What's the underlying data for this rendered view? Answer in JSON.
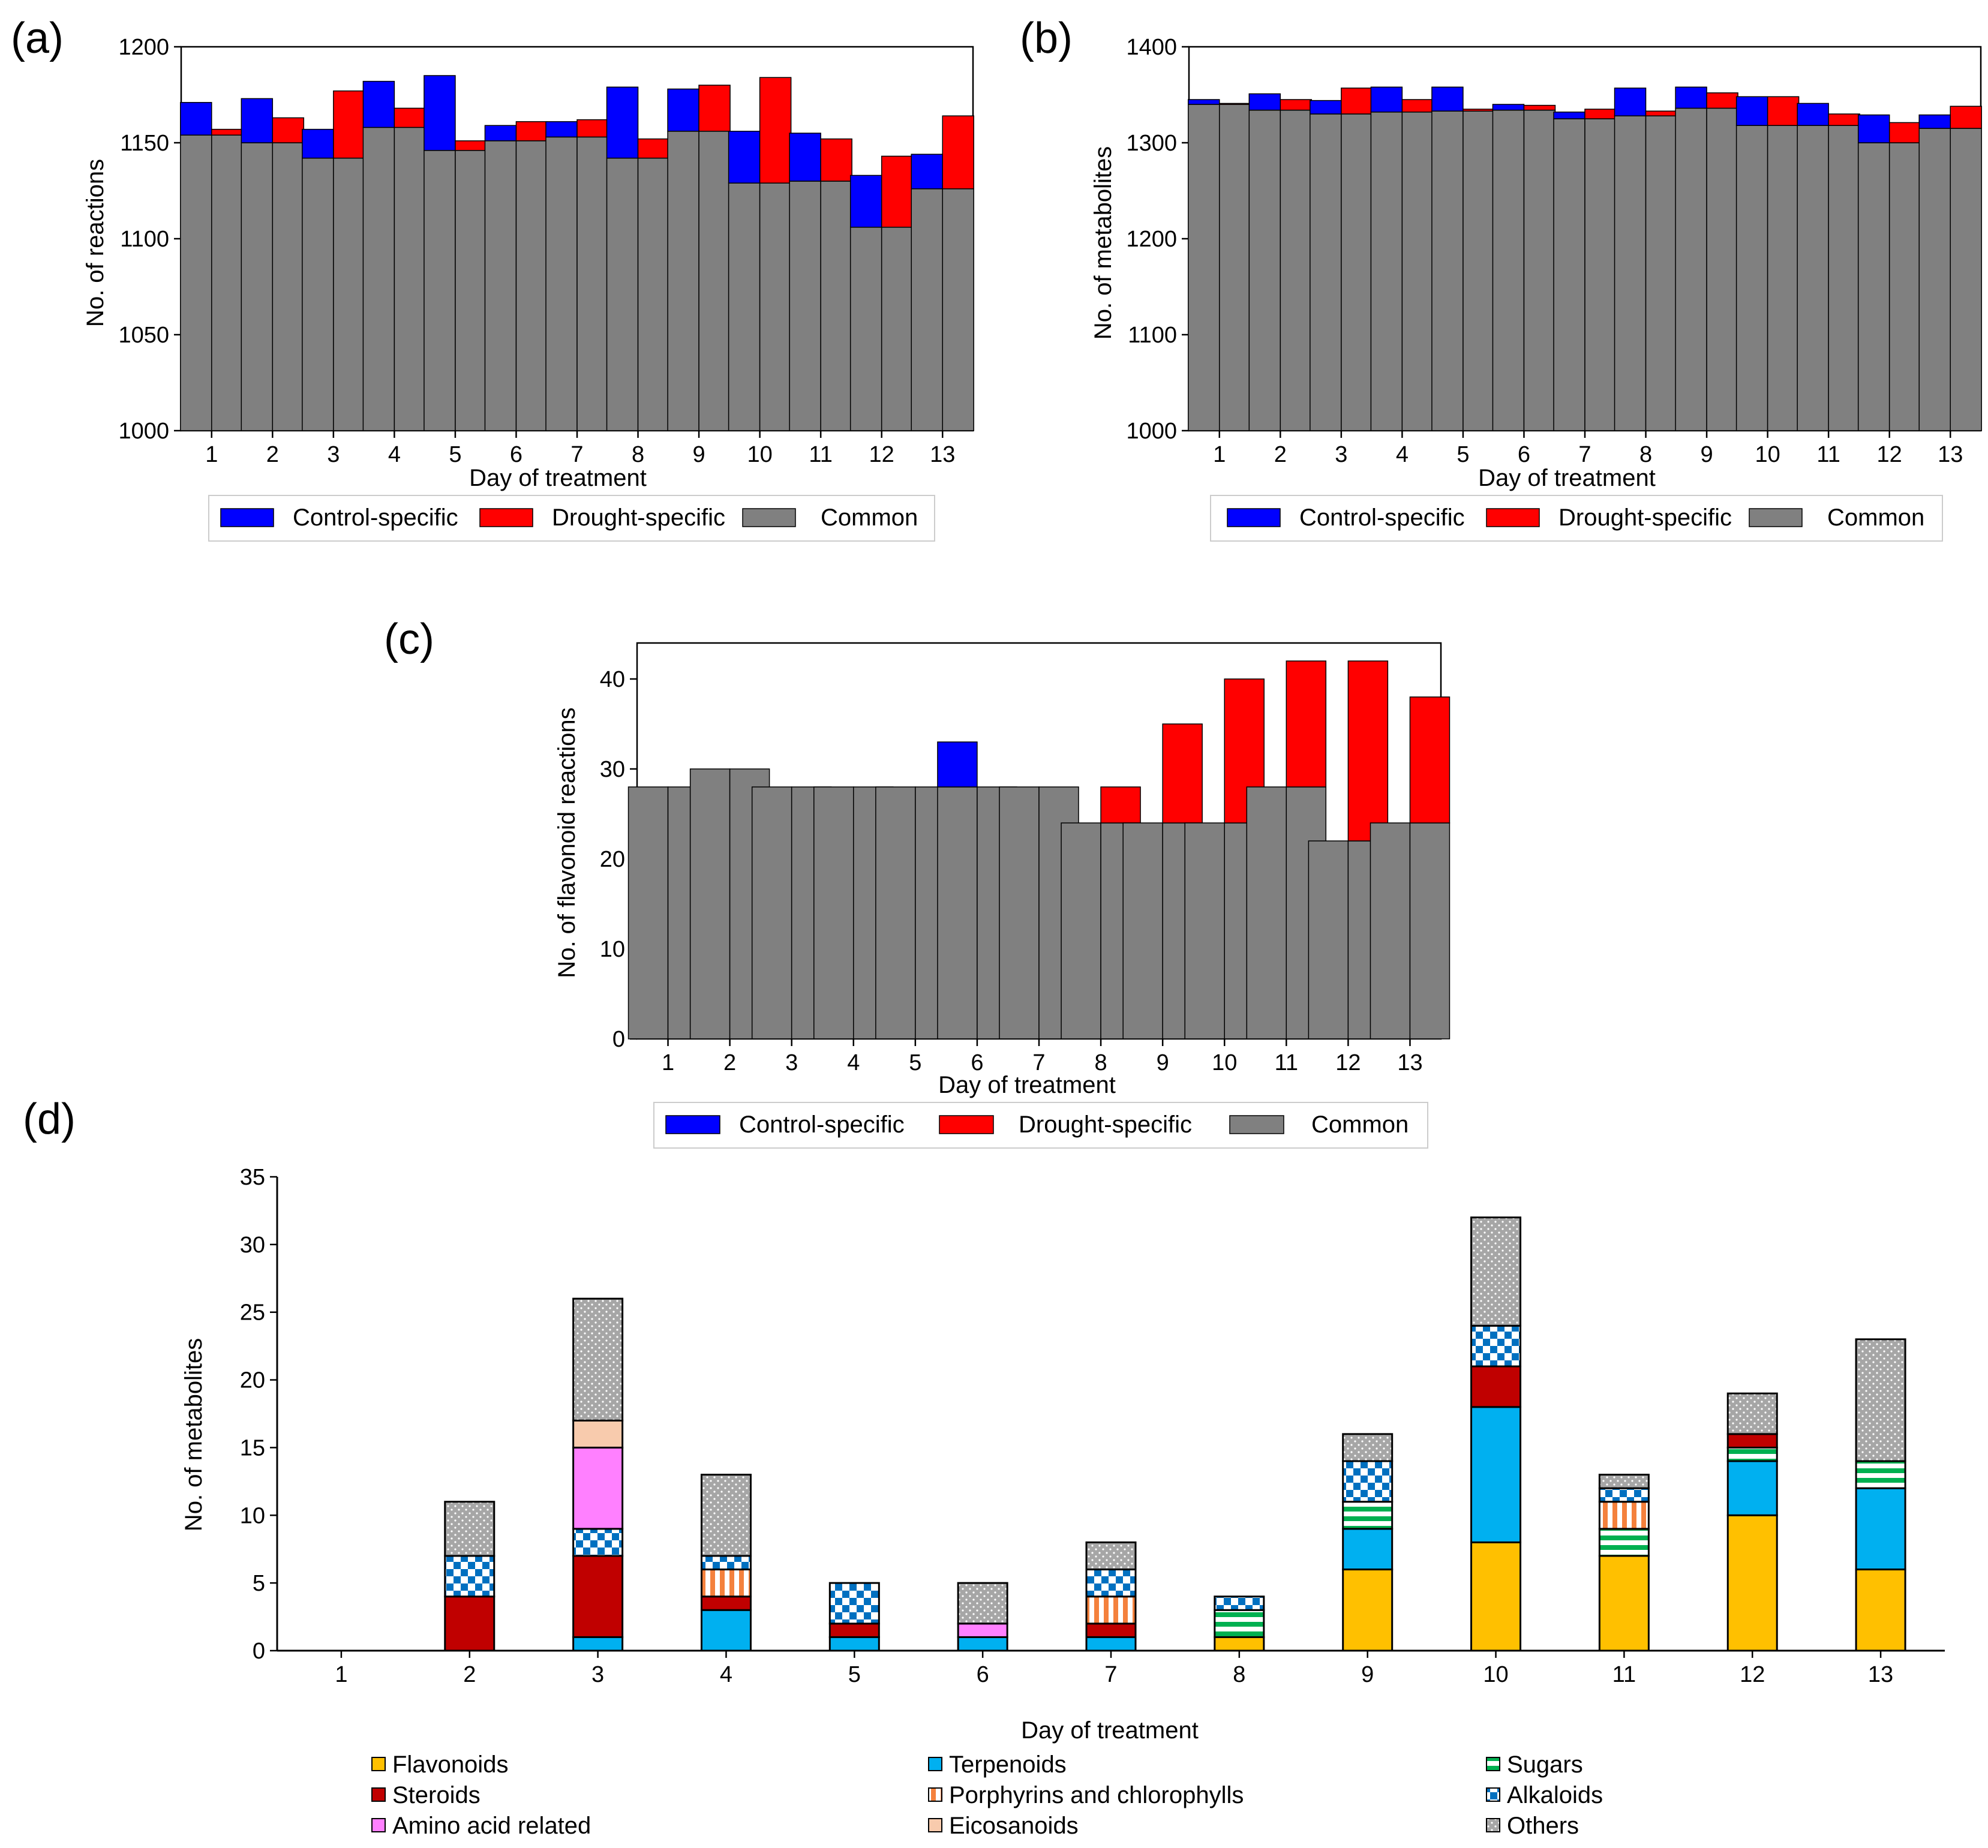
{
  "colors": {
    "control": "#0000ff",
    "drought": "#ff0000",
    "common": "#808080",
    "flavonoids": "#ffc000",
    "terpenoids": "#00b0f0",
    "sugars": "#00b050",
    "steroids": "#c00000",
    "porphyrins": "#f4813d",
    "alkaloids": "#0070c0",
    "amino": "#ff80ff",
    "eicosanoids": "#f8cbad",
    "others": "#a6a6a6"
  },
  "legend_abc": [
    "Control-specific",
    "Drought-specific",
    "Common"
  ],
  "chart_data": [
    {
      "id": "a",
      "panel_label": "(a)",
      "type": "bar",
      "title": "",
      "xlabel": "Day of treatment",
      "ylabel": "No. of reactions",
      "ylim": [
        1000,
        1200
      ],
      "yticks": [
        1000,
        1050,
        1100,
        1150,
        1200
      ],
      "categories": [
        "1",
        "2",
        "3",
        "4",
        "5",
        "6",
        "7",
        "8",
        "9",
        "10",
        "11",
        "12",
        "13"
      ],
      "series": [
        {
          "name": "Control-specific",
          "values": [
            17,
            23,
            15,
            24,
            39,
            8,
            8,
            37,
            22,
            27,
            25,
            27,
            18
          ]
        },
        {
          "name": "Drought-specific",
          "values": [
            3,
            13,
            35,
            10,
            5,
            10,
            9,
            10,
            24,
            55,
            22,
            37,
            38
          ]
        },
        {
          "name": "Common",
          "values": [
            1154,
            1150,
            1142,
            1158,
            1146,
            1151,
            1153,
            1142,
            1156,
            1129,
            1130,
            1106,
            1126
          ]
        }
      ],
      "legend": "bottom"
    },
    {
      "id": "b",
      "panel_label": "(b)",
      "type": "bar",
      "title": "",
      "xlabel": "Day of treatment",
      "ylabel": "No. of metabolites",
      "ylim": [
        1000,
        1400
      ],
      "yticks": [
        1000,
        1100,
        1200,
        1300,
        1400
      ],
      "categories": [
        "1",
        "2",
        "3",
        "4",
        "5",
        "6",
        "7",
        "8",
        "9",
        "10",
        "11",
        "12",
        "13"
      ],
      "series": [
        {
          "name": "Control-specific",
          "values": [
            5,
            17,
            14,
            26,
            25,
            6,
            7,
            29,
            22,
            30,
            23,
            29,
            14
          ]
        },
        {
          "name": "Drought-specific",
          "values": [
            1,
            11,
            27,
            13,
            2,
            5,
            10,
            5,
            16,
            30,
            12,
            21,
            23
          ]
        },
        {
          "name": "Common",
          "values": [
            1340,
            1334,
            1330,
            1332,
            1333,
            1334,
            1325,
            1328,
            1336,
            1318,
            1318,
            1300,
            1315
          ]
        }
      ],
      "legend": "bottom"
    },
    {
      "id": "c",
      "panel_label": "(c)",
      "type": "bar",
      "title": "",
      "xlabel": "Day of treatment",
      "ylabel": "No. of flavonoid reactions",
      "ylim": [
        0,
        44
      ],
      "yticks": [
        0,
        10,
        20,
        30,
        40
      ],
      "categories": [
        "1",
        "2",
        "3",
        "4",
        "5",
        "6",
        "7",
        "8",
        "9",
        "10",
        "11",
        "12",
        "13"
      ],
      "series": [
        {
          "name": "Control-specific",
          "values": [
            0,
            0,
            0,
            0,
            0,
            5,
            0,
            0,
            0,
            0,
            0,
            0,
            0
          ]
        },
        {
          "name": "Drought-specific",
          "values": [
            0,
            0,
            0,
            0,
            0,
            0,
            0,
            4,
            11,
            16,
            14,
            20,
            14
          ]
        },
        {
          "name": "Common",
          "values": [
            28,
            30,
            28,
            28,
            28,
            28,
            28,
            24,
            24,
            24,
            28,
            22,
            24
          ]
        }
      ],
      "legend": "bottom"
    },
    {
      "id": "d",
      "panel_label": "(d)",
      "type": "bar",
      "stacked": true,
      "title": "",
      "xlabel": "Day of treatment",
      "ylabel": "No. of metabolites",
      "ylim": [
        0,
        35
      ],
      "yticks": [
        0,
        5,
        10,
        15,
        20,
        25,
        30,
        35
      ],
      "categories": [
        "1",
        "2",
        "3",
        "4",
        "5",
        "6",
        "7",
        "8",
        "9",
        "10",
        "11",
        "12",
        "13"
      ],
      "series": [
        {
          "name": "Flavonoids",
          "values": [
            0,
            0,
            0,
            0,
            0,
            0,
            0,
            1,
            6,
            8,
            7,
            10,
            6
          ]
        },
        {
          "name": "Terpenoids",
          "values": [
            0,
            0,
            1,
            3,
            1,
            1,
            1,
            0,
            3,
            10,
            0,
            4,
            6
          ]
        },
        {
          "name": "Sugars",
          "values": [
            0,
            0,
            0,
            0,
            0,
            0,
            0,
            2,
            2,
            0,
            2,
            1,
            2
          ]
        },
        {
          "name": "Steroids",
          "values": [
            0,
            4,
            6,
            1,
            1,
            0,
            1,
            0,
            0,
            3,
            0,
            1,
            0
          ]
        },
        {
          "name": "Porphyrins and chlorophylls",
          "values": [
            0,
            0,
            0,
            2,
            0,
            0,
            2,
            0,
            0,
            0,
            2,
            0,
            0
          ]
        },
        {
          "name": "Alkaloids",
          "values": [
            0,
            3,
            2,
            1,
            3,
            0,
            2,
            1,
            3,
            3,
            1,
            0,
            0
          ]
        },
        {
          "name": "Amino acid related",
          "values": [
            0,
            0,
            6,
            0,
            0,
            1,
            0,
            0,
            0,
            0,
            0,
            0,
            0
          ]
        },
        {
          "name": "Eicosanoids",
          "values": [
            0,
            0,
            2,
            0,
            0,
            0,
            0,
            0,
            0,
            0,
            0,
            0,
            0
          ]
        },
        {
          "name": "Others",
          "values": [
            0,
            4,
            9,
            6,
            0,
            3,
            2,
            0,
            2,
            8,
            1,
            3,
            9
          ]
        }
      ],
      "legend": "bottom"
    }
  ]
}
